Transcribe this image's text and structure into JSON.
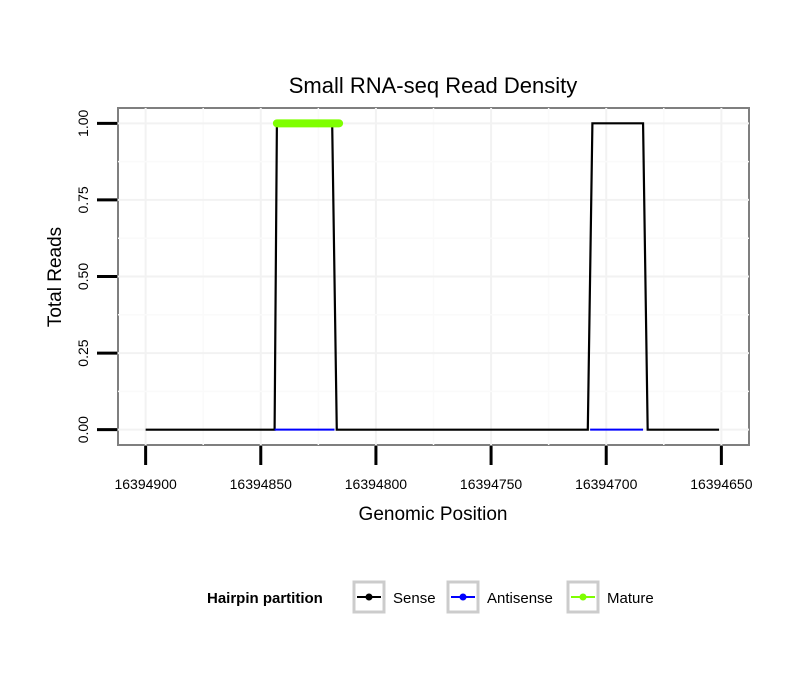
{
  "chart_data": {
    "type": "line",
    "title": "Small RNA-seq Read Density",
    "xlabel": "Genomic Position",
    "ylabel": "Total Reads",
    "x_reversed": true,
    "xlim": [
      16394912,
      16394638
    ],
    "ylim": [
      -0.05,
      1.05
    ],
    "x_ticks": [
      16394900,
      16394850,
      16394800,
      16394750,
      16394700,
      16394650
    ],
    "x_tick_labels": [
      "16394900",
      "16394850",
      "16394800",
      "16394750",
      "16394700",
      "16394650"
    ],
    "y_ticks": [
      0.0,
      0.25,
      0.5,
      0.75,
      1.0
    ],
    "y_tick_labels": [
      "0.00",
      "0.25",
      "0.50",
      "0.75",
      "1.00"
    ],
    "grid": true,
    "legend": {
      "title": "Hairpin partition",
      "position": "bottom",
      "entries": [
        {
          "label": "Sense",
          "color": "#000000"
        },
        {
          "label": "Antisense",
          "color": "#0000ff"
        },
        {
          "label": "Mature",
          "color": "#7fff00"
        }
      ]
    },
    "series": [
      {
        "name": "Sense",
        "color": "#000000",
        "x": [
          16394900,
          16394844,
          16394843,
          16394819,
          16394817,
          16394708,
          16394706,
          16394684,
          16394682,
          16394651
        ],
        "y": [
          0,
          0,
          1,
          1,
          0,
          0,
          1,
          1,
          0,
          0
        ]
      },
      {
        "name": "Antisense",
        "color": "#0000ff",
        "x": [
          16394844,
          16394818,
          16394707,
          16394684
        ],
        "y": [
          0,
          0,
          0,
          0
        ],
        "segments": [
          [
            0,
            1
          ],
          [
            2,
            3
          ]
        ]
      },
      {
        "name": "Mature",
        "color": "#7fff00",
        "x": [
          16394843,
          16394816
        ],
        "y": [
          1,
          1
        ]
      }
    ]
  }
}
